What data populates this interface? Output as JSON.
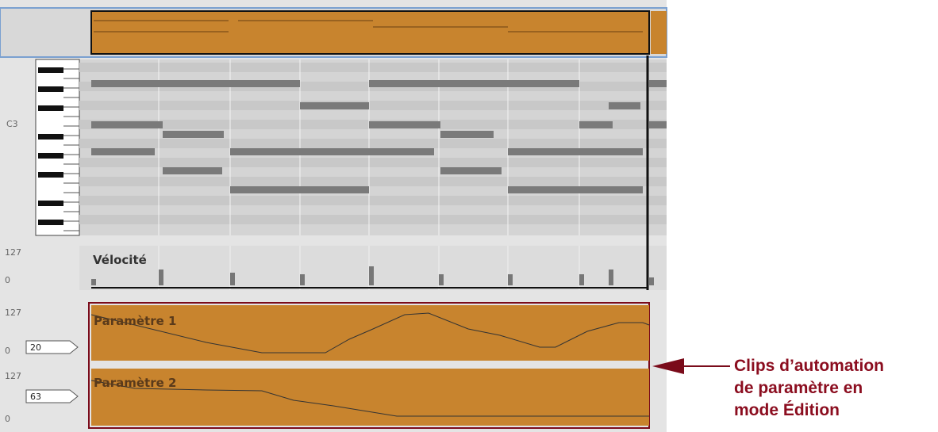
{
  "piano_roll": {
    "note_label": "C3"
  },
  "velocity_lane": {
    "max_label": "127",
    "min_label": "0",
    "title": "Vélocité"
  },
  "automation_lanes": [
    {
      "max_label": "127",
      "min_label": "0",
      "value": "20",
      "title": "Paramètre 1"
    },
    {
      "max_label": "127",
      "min_label": "0",
      "value": "63",
      "title": "Paramètre 2"
    }
  ],
  "callout": {
    "lines": [
      "Clips d’automation",
      "de paramètre en",
      "mode Édition"
    ]
  }
}
